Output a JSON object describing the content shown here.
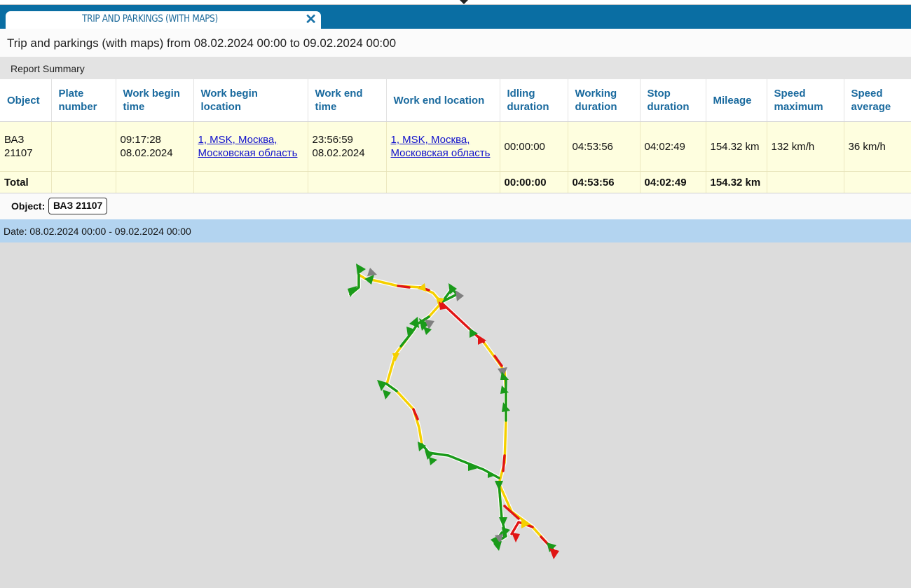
{
  "tab": {
    "title": "TRIP AND PARKINGS (WITH MAPS)",
    "close_glyph": "✕"
  },
  "report": {
    "title": "Trip and parkings (with maps) from 08.02.2024 00:00 to 09.02.2024 00:00"
  },
  "summary": {
    "label": "Report Summary"
  },
  "table": {
    "headers": {
      "object": "Object",
      "plate": "Plate number",
      "begin_time": "Work begin time",
      "begin_loc": "Work begin location",
      "end_time": "Work end time",
      "end_loc": "Work end location",
      "idling": "Idling duration",
      "working": "Working duration",
      "stop": "Stop duration",
      "mileage": "Mileage",
      "speed_max": "Speed maximum",
      "speed_avg": "Speed average"
    },
    "row": {
      "object": "ВАЗ 21107",
      "plate": "",
      "begin_time": "09:17:28 08.02.2024",
      "begin_loc": "1, MSK, Москва, Московская область",
      "end_time": "23:56:59 08.02.2024",
      "end_loc": "1, MSK, Москва, Московская область",
      "idling": "00:00:00",
      "working": "04:53:56",
      "stop": "04:02:49",
      "mileage": "154.32 km",
      "speed_max": "132 km/h",
      "speed_avg": "36 km/h"
    },
    "total": {
      "label": "Total",
      "idling": "00:00:00",
      "working": "04:53:56",
      "stop": "04:02:49",
      "mileage": "154.32 km"
    }
  },
  "object_filter": {
    "label": "Object:",
    "value": "ВАЗ 21107"
  },
  "date_row": {
    "text": "Date: 08.02.2024 00:00 - 09.02.2024 00:00"
  },
  "map": {
    "colors": {
      "background": "#dcdcdc",
      "slow": "#f5d000",
      "fast": "#e01515",
      "normal": "#1a9a1a",
      "stop": "#808080"
    }
  }
}
